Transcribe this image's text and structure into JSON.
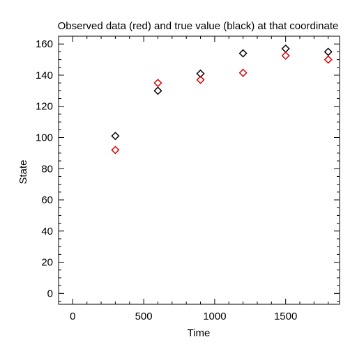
{
  "chart_data": {
    "type": "scatter",
    "title": "Observed data (red) and true value (black) at that coordinate",
    "xlabel": "Time",
    "ylabel": "State",
    "xlim": [
      -100,
      1880
    ],
    "ylim": [
      -7,
      165
    ],
    "x_ticks": [
      0,
      500,
      1000,
      1500
    ],
    "y_ticks": [
      0,
      20,
      40,
      60,
      80,
      100,
      120,
      140,
      160
    ],
    "x_minor_step": 100,
    "y_minor_step": 5,
    "grid": false,
    "legend": "none",
    "marker": "diamond-open",
    "series": [
      {
        "color": "#000000",
        "points": [
          {
            "x": 300,
            "y": 101
          },
          {
            "x": 600,
            "y": 130
          },
          {
            "x": 900,
            "y": 141
          },
          {
            "x": 1200,
            "y": 154
          },
          {
            "x": 1500,
            "y": 157
          },
          {
            "x": 1800,
            "y": 155
          }
        ]
      },
      {
        "color": "#dd0000",
        "points": [
          {
            "x": 300,
            "y": 92
          },
          {
            "x": 600,
            "y": 135
          },
          {
            "x": 900,
            "y": 137
          },
          {
            "x": 1200,
            "y": 141.5
          },
          {
            "x": 1500,
            "y": 152.5
          },
          {
            "x": 1800,
            "y": 150
          }
        ]
      }
    ]
  }
}
